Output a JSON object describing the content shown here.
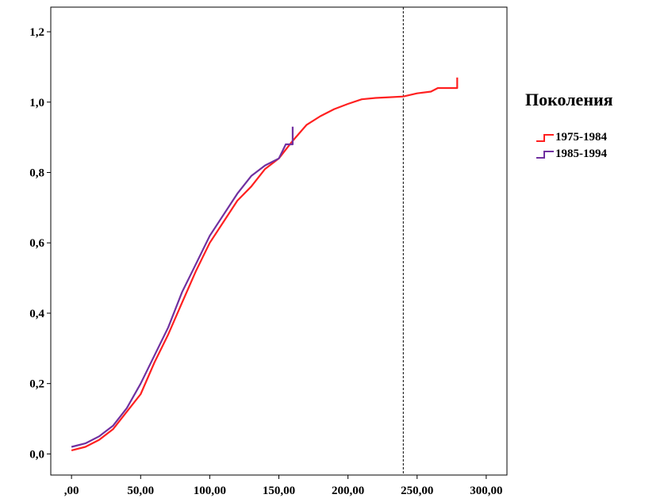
{
  "chart_data": {
    "type": "line",
    "xlim": [
      -15,
      315
    ],
    "ylim": [
      -0.06,
      1.27
    ],
    "x_ticks": [
      0,
      50,
      100,
      150,
      200,
      250,
      300
    ],
    "x_tick_labels": [
      ",00",
      "50,00",
      "100,00",
      "150,00",
      "200,00",
      "250,00",
      "300,00"
    ],
    "y_ticks": [
      0,
      0.2,
      0.4,
      0.6,
      0.8,
      1.0,
      1.2
    ],
    "y_tick_labels": [
      "0,0",
      "0,2",
      "0,4",
      "0,6",
      "0,8",
      "1,0",
      "1,2"
    ],
    "reference_line_x": 240,
    "legend": {
      "title": "Поколения",
      "placement": "right"
    },
    "series": [
      {
        "name": "1975-1984",
        "color": "#ff2020",
        "points": [
          [
            0,
            0.01
          ],
          [
            10,
            0.02
          ],
          [
            20,
            0.04
          ],
          [
            30,
            0.07
          ],
          [
            40,
            0.12
          ],
          [
            50,
            0.17
          ],
          [
            60,
            0.26
          ],
          [
            70,
            0.34
          ],
          [
            80,
            0.43
          ],
          [
            90,
            0.52
          ],
          [
            100,
            0.6
          ],
          [
            110,
            0.66
          ],
          [
            120,
            0.72
          ],
          [
            130,
            0.76
          ],
          [
            140,
            0.81
          ],
          [
            150,
            0.84
          ],
          [
            160,
            0.89
          ],
          [
            170,
            0.935
          ],
          [
            180,
            0.96
          ],
          [
            190,
            0.98
          ],
          [
            200,
            0.995
          ],
          [
            210,
            1.008
          ],
          [
            220,
            1.012
          ],
          [
            230,
            1.014
          ],
          [
            240,
            1.016
          ],
          [
            250,
            1.025
          ],
          [
            260,
            1.03
          ],
          [
            265,
            1.04
          ],
          [
            279,
            1.04
          ],
          [
            279,
            1.07
          ]
        ]
      },
      {
        "name": "1985-1994",
        "color": "#7030a0",
        "points": [
          [
            0,
            0.02
          ],
          [
            10,
            0.03
          ],
          [
            20,
            0.05
          ],
          [
            30,
            0.08
          ],
          [
            40,
            0.13
          ],
          [
            50,
            0.2
          ],
          [
            60,
            0.28
          ],
          [
            70,
            0.36
          ],
          [
            80,
            0.46
          ],
          [
            90,
            0.54
          ],
          [
            100,
            0.62
          ],
          [
            110,
            0.68
          ],
          [
            120,
            0.74
          ],
          [
            130,
            0.79
          ],
          [
            140,
            0.82
          ],
          [
            150,
            0.84
          ],
          [
            155,
            0.88
          ],
          [
            160,
            0.88
          ],
          [
            160,
            0.93
          ]
        ]
      }
    ]
  }
}
